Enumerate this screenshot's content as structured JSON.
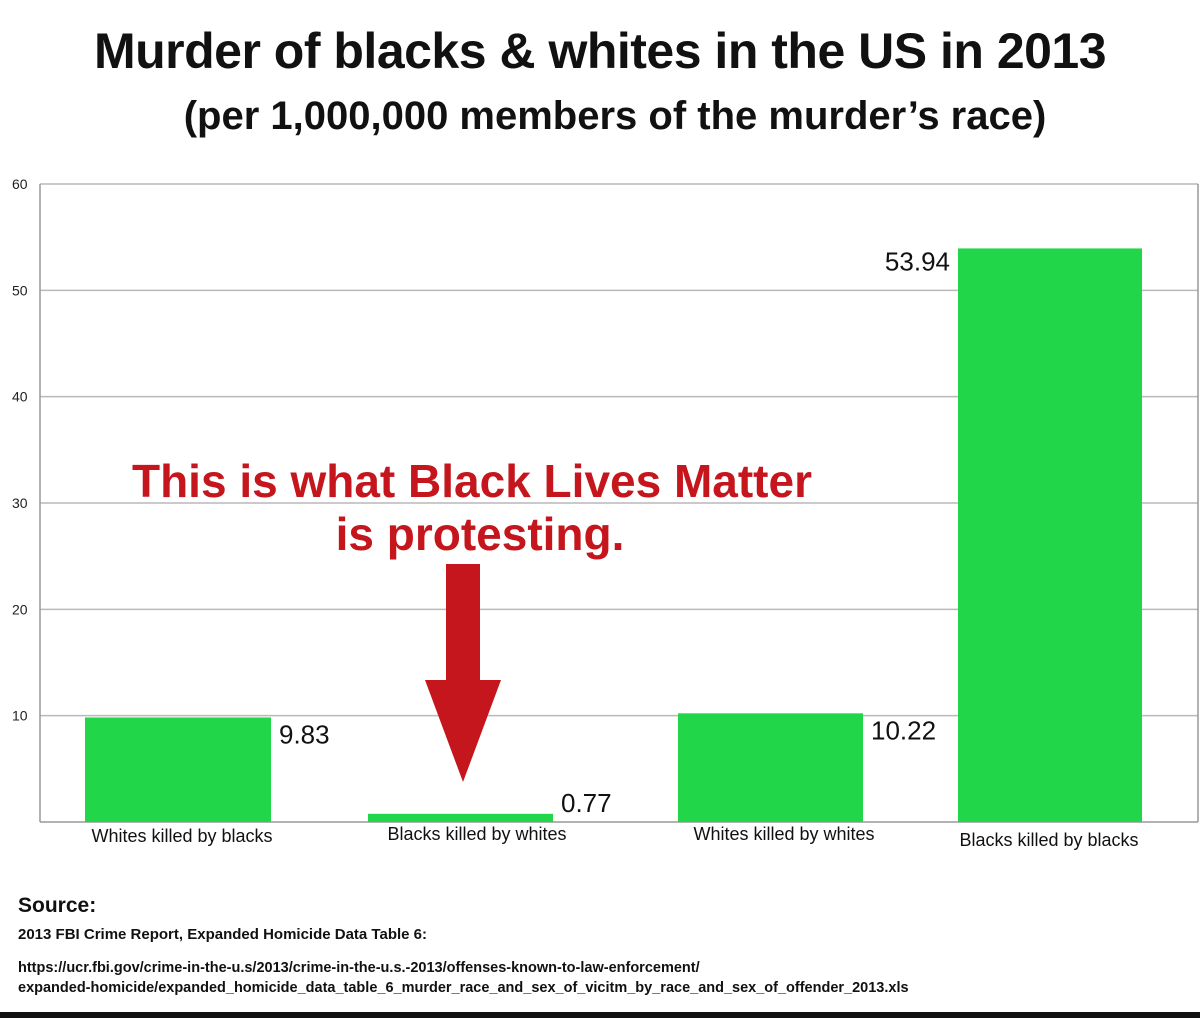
{
  "header": {
    "title": "Murder of blacks & whites in the US in 2013",
    "subtitle": "(per 1,000,000 members of the murder’s race)"
  },
  "colors": {
    "bar": "#22d64a",
    "annotation": "#c4161c",
    "grid": "#b9b9b9"
  },
  "chart_data": {
    "type": "bar",
    "categories": [
      "Whites killed by blacks",
      "Blacks killed by whites",
      "Whites killed by whites",
      "Blacks killed by blacks"
    ],
    "values": [
      9.83,
      0.77,
      10.22,
      53.94
    ],
    "value_labels": [
      "9.83",
      "0.77",
      "10.22",
      "53.94"
    ],
    "ylim": [
      0,
      60
    ],
    "yticks": [
      10,
      20,
      30,
      40,
      50,
      60
    ],
    "ytick_labels": [
      "10",
      "20",
      "30",
      "40",
      "50",
      "60"
    ],
    "grid": true,
    "legend": "none",
    "annotation": {
      "line1": "This is what Black Lives Matter",
      "line2": "is protesting.",
      "target_category": "Blacks killed by whites"
    }
  },
  "source": {
    "heading": "Source:",
    "report": "2013 FBI Crime Report, Expanded Homicide Data Table 6:",
    "url_line1": "https://ucr.fbi.gov/crime-in-the-u.s/2013/crime-in-the-u.s.-2013/offenses-known-to-law-enforcement/",
    "url_line2": "expanded-homicide/expanded_homicide_data_table_6_murder_race_and_sex_of_vicitm_by_race_and_sex_of_offender_2013.xls"
  }
}
